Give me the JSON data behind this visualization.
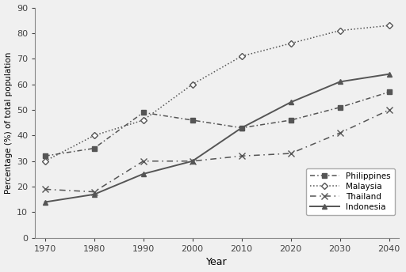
{
  "years": [
    1970,
    1980,
    1990,
    2000,
    2010,
    2020,
    2030,
    2040
  ],
  "philippines": [
    32,
    35,
    49,
    46,
    43,
    46,
    51,
    57
  ],
  "malaysia": [
    30,
    40,
    46,
    60,
    71,
    76,
    81,
    83
  ],
  "thailand": [
    19,
    18,
    30,
    30,
    32,
    33,
    41,
    50
  ],
  "indonesia": [
    14,
    17,
    25,
    30,
    43,
    53,
    61,
    64
  ],
  "xlabel": "Year",
  "ylabel": "Percentage (%) of total population",
  "ylim": [
    0,
    90
  ],
  "xlim": [
    1968,
    2042
  ],
  "yticks": [
    0,
    10,
    20,
    30,
    40,
    50,
    60,
    70,
    80,
    90
  ],
  "xticks": [
    1970,
    1980,
    1990,
    2000,
    2010,
    2020,
    2030,
    2040
  ],
  "line_color": "#555555",
  "bg_color": "#f0f0f0",
  "legend_labels": [
    "Philippines",
    "Malaysia",
    "Thailand",
    "Indonesia"
  ]
}
